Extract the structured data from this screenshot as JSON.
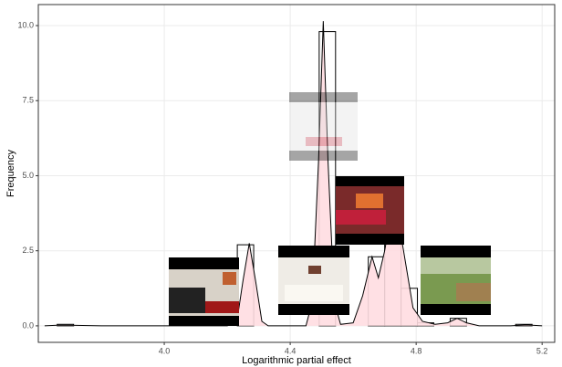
{
  "chart_data": {
    "type": "histogram",
    "x_label": "Logarithmic partial effect",
    "y_label": "Frequency",
    "bins": [
      3.66,
      3.712,
      3.764,
      3.816,
      3.868,
      3.92,
      3.972,
      4.024,
      4.076,
      4.128,
      4.18,
      4.232,
      4.284,
      4.336,
      4.388,
      4.44,
      4.492,
      4.544,
      4.596,
      4.648,
      4.7,
      4.752,
      4.804,
      4.856,
      4.908,
      4.96,
      5.012,
      5.064,
      5.116,
      5.168
    ],
    "counts": [
      0.05,
      0,
      0,
      0,
      0,
      0,
      0,
      0,
      0,
      0,
      0,
      2.7,
      0,
      0,
      0,
      0,
      9.8,
      0,
      0,
      2.3,
      4.0,
      1.25,
      0.1,
      0,
      0.25,
      0,
      0,
      0,
      0.05
    ],
    "density": {
      "x": [
        3.62,
        3.66,
        3.7,
        3.8,
        4.2,
        4.23,
        4.25,
        4.27,
        4.29,
        4.31,
        4.33,
        4.45,
        4.47,
        4.49,
        4.505,
        4.52,
        4.54,
        4.56,
        4.6,
        4.63,
        4.66,
        4.68,
        4.7,
        4.73,
        4.76,
        4.79,
        4.82,
        4.86,
        4.9,
        4.93,
        4.96,
        5.0,
        5.1,
        5.15,
        5.2
      ],
      "y": [
        0,
        0.02,
        0.02,
        0,
        0,
        0.1,
        1.5,
        2.75,
        1.5,
        0.15,
        0,
        0,
        0.8,
        5.5,
        10.15,
        5.5,
        0.8,
        0.05,
        0.1,
        1.0,
        2.3,
        1.6,
        2.5,
        4.3,
        2.5,
        0.6,
        0.15,
        0.05,
        0.1,
        0.25,
        0.1,
        0,
        0,
        0.03,
        0
      ],
      "color": "#ffdde1"
    },
    "xlim": [
      3.6,
      5.24
    ],
    "ylim": [
      -0.55,
      10.7
    ],
    "xticks": [
      {
        "value": 4,
        "label": "4.0"
      },
      4.4,
      4.8,
      5.2
    ],
    "yticks": [
      {
        "value": 0,
        "label": "0.0"
      },
      2.5,
      {
        "value": 5,
        "label": "5.0"
      },
      7.5,
      {
        "value": 10,
        "label": "10.0"
      }
    ],
    "grid": true
  }
}
